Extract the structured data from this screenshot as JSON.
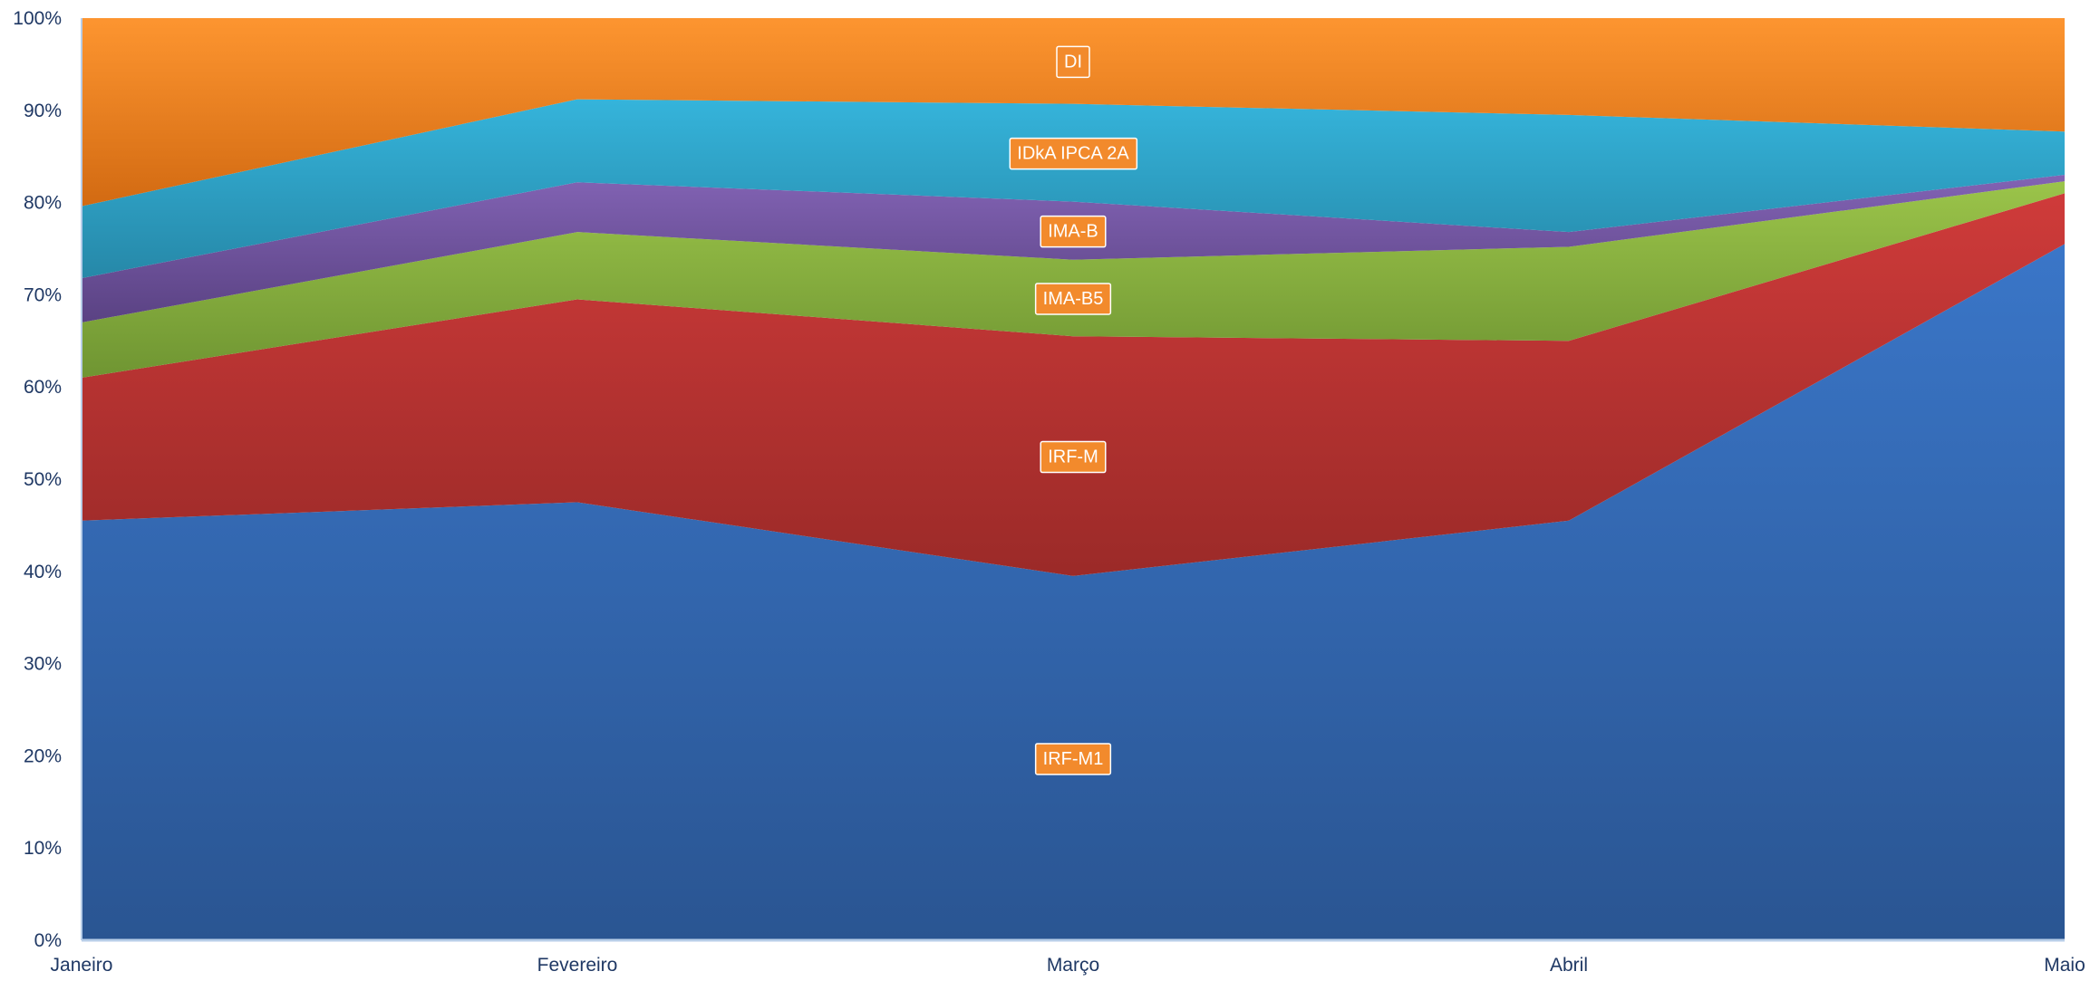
{
  "chart_data": {
    "type": "area",
    "stacked": true,
    "percent": true,
    "categories": [
      "Janeiro",
      "Fevereiro",
      "Março",
      "Abril",
      "Maio"
    ],
    "y_ticks": [
      "0%",
      "10%",
      "20%",
      "30%",
      "40%",
      "50%",
      "60%",
      "70%",
      "80%",
      "90%",
      "100%"
    ],
    "ylim": [
      0,
      100
    ],
    "grid": false,
    "legend": "inline labels",
    "series": [
      {
        "name": "IRF-M1",
        "values": [
          45.5,
          47.5,
          39.5,
          45.5,
          75.5
        ],
        "color": "#3a76c8",
        "color_dark": "#2a5592"
      },
      {
        "name": "IRF-M",
        "values": [
          15.5,
          22.0,
          26.0,
          19.5,
          5.5
        ],
        "color": "#cf3b3a",
        "color_dark": "#9b2a28"
      },
      {
        "name": "IMA-B5",
        "values": [
          6.0,
          7.3,
          8.3,
          10.2,
          1.3
        ],
        "color": "#9bc44a",
        "color_dark": "#6f9532"
      },
      {
        "name": "IMA-B",
        "values": [
          4.8,
          5.4,
          6.3,
          1.6,
          0.7
        ],
        "color": "#8263b4",
        "color_dark": "#5a4283"
      },
      {
        "name": "IDkA IPCA 2A",
        "values": [
          7.8,
          9.0,
          10.6,
          12.7,
          4.7
        ],
        "color": "#35b4db",
        "color_dark": "#2688a8"
      },
      {
        "name": "DI",
        "values": [
          20.4,
          8.8,
          9.3,
          10.5,
          12.3
        ],
        "color": "#fd9530",
        "color_dark": "#d26a12"
      }
    ],
    "label_style": {
      "background": "#f28a2c",
      "border": "#ffffff",
      "text_color": "#ffffff"
    },
    "axis_color": "#b7cde8",
    "tick_color": "#1f3864"
  }
}
